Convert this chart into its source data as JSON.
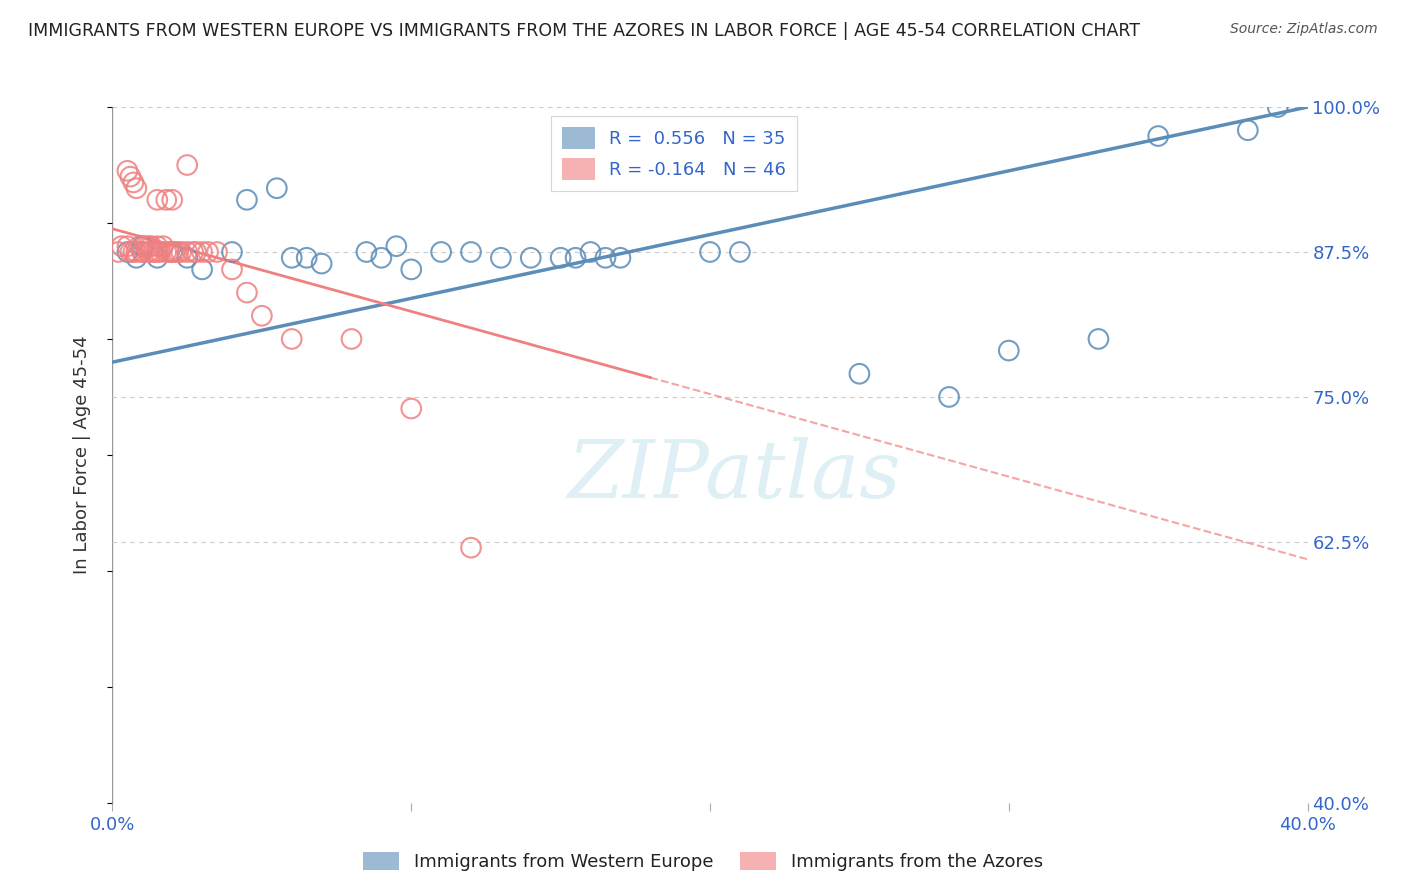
{
  "title": "IMMIGRANTS FROM WESTERN EUROPE VS IMMIGRANTS FROM THE AZORES IN LABOR FORCE | AGE 45-54 CORRELATION CHART",
  "source": "Source: ZipAtlas.com",
  "ylabel": "In Labor Force | Age 45-54",
  "x_min": 0.0,
  "x_max": 0.4,
  "y_min": 0.4,
  "y_max": 1.0,
  "x_ticks": [
    0.0,
    0.1,
    0.2,
    0.3,
    0.4
  ],
  "y_ticks": [
    0.4,
    0.625,
    0.75,
    0.875,
    1.0
  ],
  "y_tick_labels": [
    "40.0%",
    "62.5%",
    "75.0%",
    "87.5%",
    "100.0%"
  ],
  "blue_color": "#5B8DB8",
  "pink_color": "#F08080",
  "blue_label": "Immigrants from Western Europe",
  "pink_label": "Immigrants from the Azores",
  "R_blue": 0.556,
  "N_blue": 35,
  "R_pink": -0.164,
  "N_pink": 46,
  "watermark_text": "ZIPatlas",
  "blue_scatter_x": [
    0.005,
    0.008,
    0.01,
    0.015,
    0.02,
    0.025,
    0.03,
    0.04,
    0.045,
    0.055,
    0.06,
    0.065,
    0.07,
    0.085,
    0.09,
    0.095,
    0.1,
    0.11,
    0.12,
    0.13,
    0.14,
    0.15,
    0.155,
    0.16,
    0.165,
    0.17,
    0.2,
    0.21,
    0.25,
    0.28,
    0.3,
    0.33,
    0.35,
    0.38,
    0.39
  ],
  "blue_scatter_y": [
    0.875,
    0.87,
    0.88,
    0.87,
    0.875,
    0.87,
    0.86,
    0.875,
    0.92,
    0.93,
    0.87,
    0.87,
    0.865,
    0.875,
    0.87,
    0.88,
    0.86,
    0.875,
    0.875,
    0.87,
    0.87,
    0.87,
    0.87,
    0.875,
    0.87,
    0.87,
    0.875,
    0.875,
    0.77,
    0.75,
    0.79,
    0.8,
    0.975,
    0.98,
    1.0
  ],
  "pink_scatter_x": [
    0.002,
    0.003,
    0.005,
    0.005,
    0.006,
    0.006,
    0.007,
    0.007,
    0.008,
    0.008,
    0.009,
    0.01,
    0.01,
    0.011,
    0.012,
    0.012,
    0.013,
    0.013,
    0.014,
    0.015,
    0.015,
    0.015,
    0.016,
    0.017,
    0.018,
    0.018,
    0.019,
    0.02,
    0.02,
    0.021,
    0.022,
    0.023,
    0.025,
    0.025,
    0.027,
    0.028,
    0.03,
    0.032,
    0.035,
    0.04,
    0.045,
    0.05,
    0.06,
    0.08,
    0.1,
    0.12
  ],
  "pink_scatter_y": [
    0.875,
    0.88,
    0.945,
    0.88,
    0.94,
    0.875,
    0.935,
    0.875,
    0.93,
    0.875,
    0.88,
    0.875,
    0.875,
    0.88,
    0.875,
    0.88,
    0.875,
    0.88,
    0.875,
    0.92,
    0.88,
    0.875,
    0.875,
    0.88,
    0.875,
    0.92,
    0.875,
    0.875,
    0.92,
    0.875,
    0.875,
    0.875,
    0.875,
    0.95,
    0.875,
    0.875,
    0.875,
    0.875,
    0.875,
    0.86,
    0.84,
    0.82,
    0.8,
    0.8,
    0.74,
    0.62
  ],
  "background_color": "#FFFFFF",
  "grid_color": "#CCCCCC",
  "tick_color": "#3366CC",
  "label_color": "#333333"
}
